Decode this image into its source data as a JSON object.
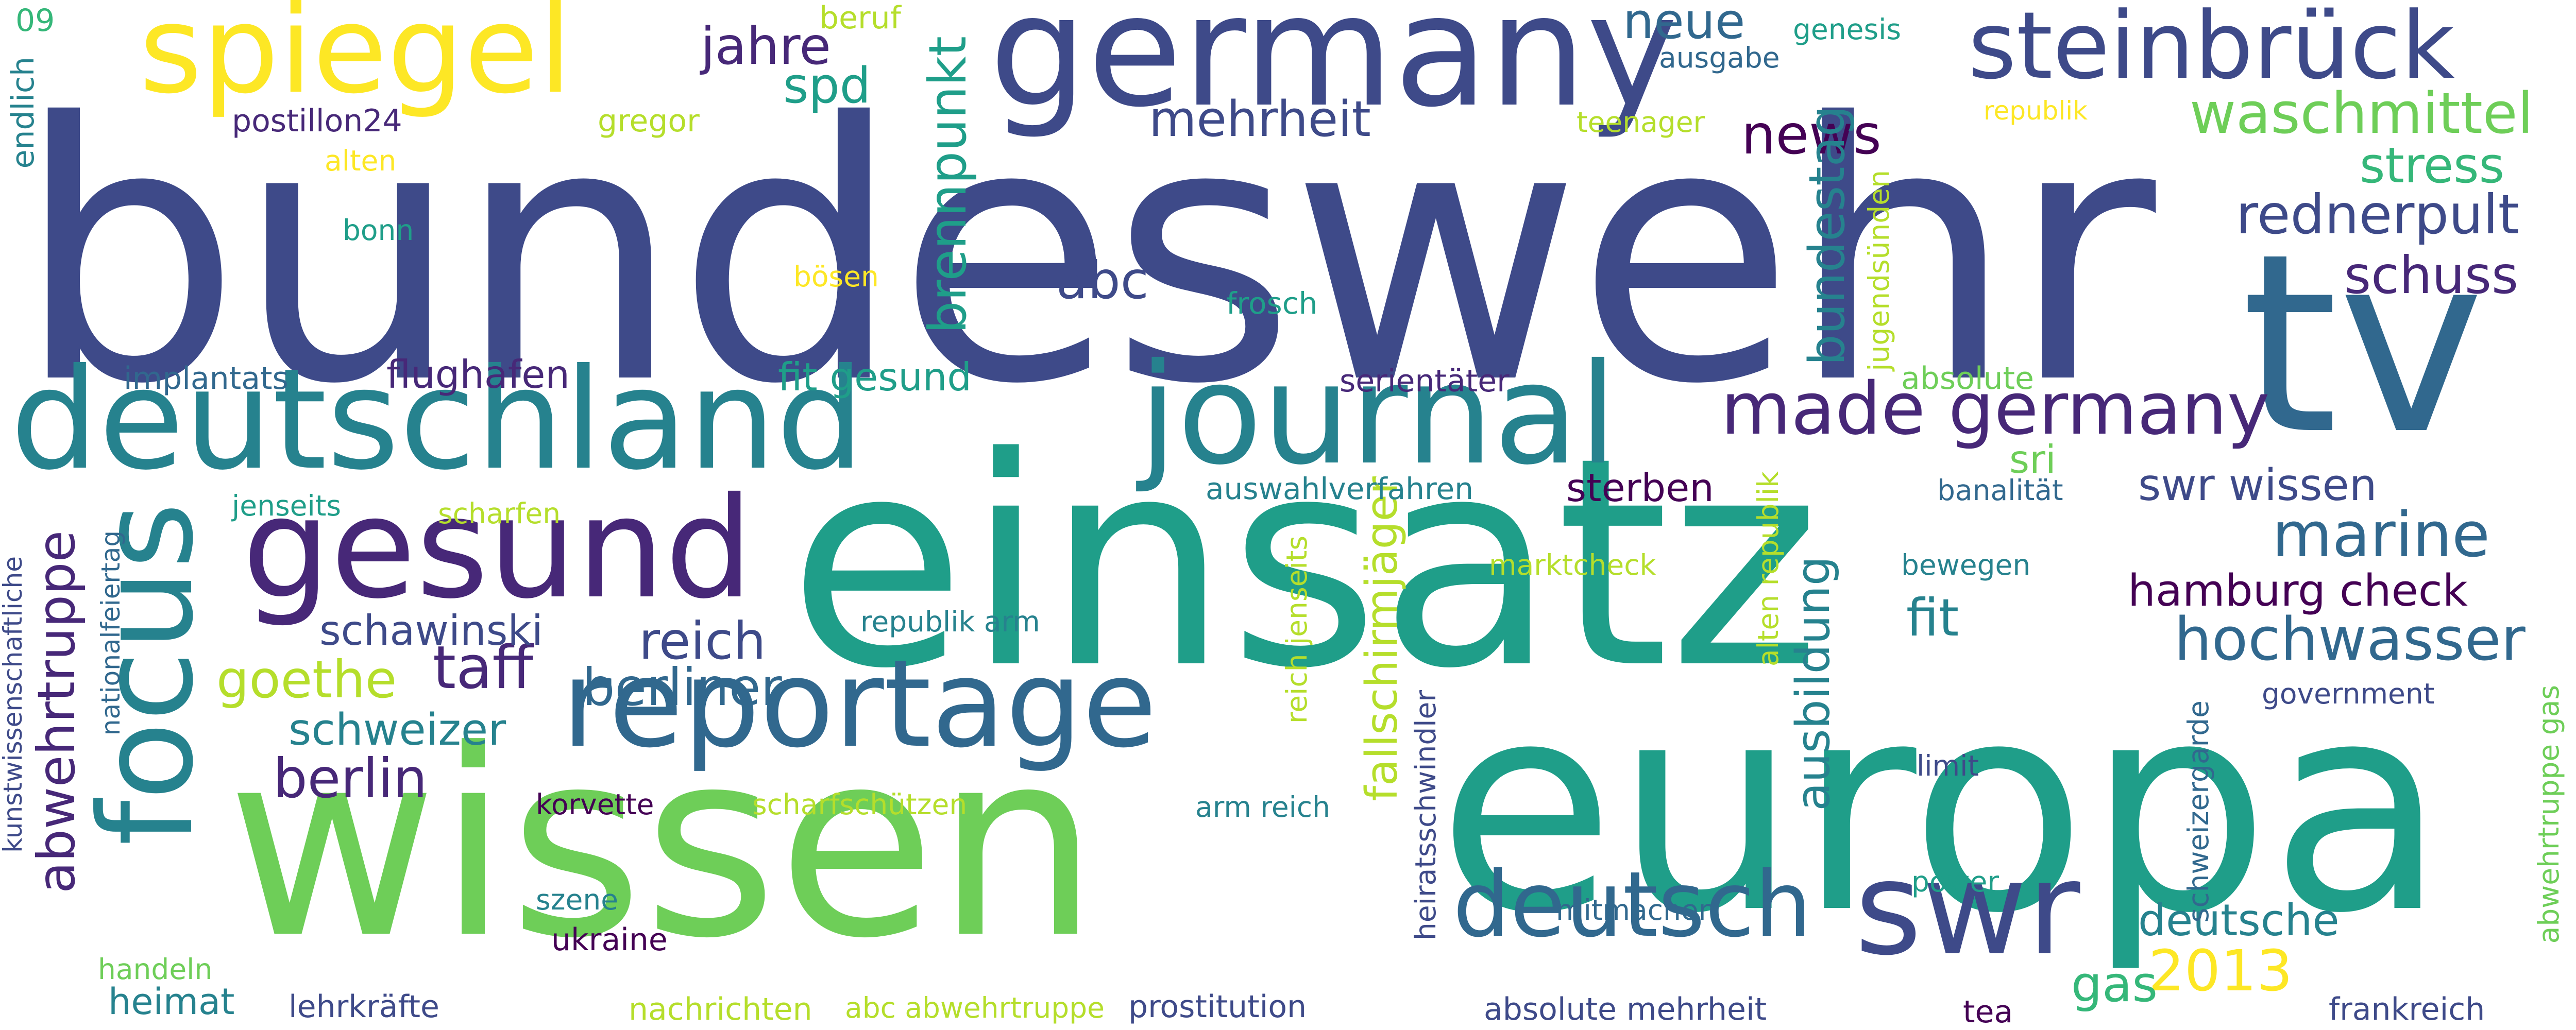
{
  "palette": {
    "navy": "#3e4a89",
    "indigo": "#472878",
    "purple": "#440154",
    "blue": "#31688e",
    "teal": "#26828e",
    "teal_green": "#1f9e89",
    "green": "#35b779",
    "light_green": "#6ece58",
    "lime": "#b5de2b",
    "yellow": "#fde725"
  },
  "words": [
    {
      "text": "bundeswehr",
      "color": "navy"
    },
    {
      "text": "einsatz",
      "color": "teal_green"
    },
    {
      "text": "europa",
      "color": "teal_green"
    },
    {
      "text": "wissen",
      "color": "light_green"
    },
    {
      "text": "tv",
      "color": "blue"
    },
    {
      "text": "germany",
      "color": "navy"
    },
    {
      "text": "deutschland",
      "color": "teal"
    },
    {
      "text": "journal",
      "color": "teal"
    },
    {
      "text": "spiegel",
      "color": "yellow"
    },
    {
      "text": "steinbrück",
      "color": "navy"
    },
    {
      "text": "gesund",
      "color": "indigo"
    },
    {
      "text": "reportage",
      "color": "blue"
    },
    {
      "text": "focus",
      "color": "teal"
    },
    {
      "text": "swr",
      "color": "navy"
    },
    {
      "text": "deutsch",
      "color": "blue"
    },
    {
      "text": "made germany",
      "color": "indigo"
    },
    {
      "text": "waschmittel",
      "color": "light_green"
    },
    {
      "text": "rednerpult",
      "color": "navy"
    },
    {
      "text": "hochwasser",
      "color": "blue"
    },
    {
      "text": "marine",
      "color": "blue"
    },
    {
      "text": "abwehrtruppe",
      "color": "indigo"
    },
    {
      "text": "news",
      "color": "purple"
    },
    {
      "text": "neue",
      "color": "blue"
    },
    {
      "text": "jahre",
      "color": "indigo"
    },
    {
      "text": "spd",
      "color": "teal_green"
    },
    {
      "text": "mehrheit",
      "color": "navy"
    },
    {
      "text": "brennpunkt",
      "color": "teal_green"
    },
    {
      "text": "bundestag",
      "color": "teal"
    },
    {
      "text": "stress",
      "color": "green"
    },
    {
      "text": "schuss",
      "color": "indigo"
    },
    {
      "text": "abc",
      "color": "navy"
    },
    {
      "text": "taff",
      "color": "indigo"
    },
    {
      "text": "reich",
      "color": "navy"
    },
    {
      "text": "berliner",
      "color": "blue"
    },
    {
      "text": "schweizer",
      "color": "teal"
    },
    {
      "text": "berlin",
      "color": "indigo"
    },
    {
      "text": "schawinski",
      "color": "navy"
    },
    {
      "text": "goethe",
      "color": "lime"
    },
    {
      "text": "fit",
      "color": "teal"
    },
    {
      "text": "ausbildung",
      "color": "teal"
    },
    {
      "text": "fallschirmjäger",
      "color": "lime"
    },
    {
      "text": "swr wissen",
      "color": "navy"
    },
    {
      "text": "hamburg check",
      "color": "purple"
    },
    {
      "text": "sri",
      "color": "light_green"
    },
    {
      "text": "sterben",
      "color": "purple"
    },
    {
      "text": "deutsche",
      "color": "teal"
    },
    {
      "text": "2013",
      "color": "yellow"
    },
    {
      "text": "gas",
      "color": "green"
    },
    {
      "text": "flughafen",
      "color": "indigo"
    },
    {
      "text": "fit gesund",
      "color": "teal_green"
    },
    {
      "text": "implantats",
      "color": "blue"
    },
    {
      "text": "serientäter",
      "color": "indigo"
    },
    {
      "text": "absolute",
      "color": "light_green"
    },
    {
      "text": "auswahlverfahren",
      "color": "teal"
    },
    {
      "text": "frosch",
      "color": "teal_green"
    },
    {
      "text": "09",
      "color": "green"
    },
    {
      "text": "endlich",
      "color": "teal"
    },
    {
      "text": "postillon24",
      "color": "indigo"
    },
    {
      "text": "gregor",
      "color": "lime"
    },
    {
      "text": "beruf",
      "color": "lime"
    },
    {
      "text": "alten",
      "color": "yellow"
    },
    {
      "text": "bonn",
      "color": "teal_green"
    },
    {
      "text": "bösen",
      "color": "yellow"
    },
    {
      "text": "ausgabe",
      "color": "blue"
    },
    {
      "text": "genesis",
      "color": "teal_green"
    },
    {
      "text": "teenager",
      "color": "lime"
    },
    {
      "text": "republik",
      "color": "yellow"
    },
    {
      "text": "jugendsünden",
      "color": "lime"
    },
    {
      "text": "jenseits",
      "color": "teal_green"
    },
    {
      "text": "scharfen",
      "color": "lime"
    },
    {
      "text": "banalität",
      "color": "blue"
    },
    {
      "text": "alten republik",
      "color": "lime"
    },
    {
      "text": "marktcheck",
      "color": "lime"
    },
    {
      "text": "bewegen",
      "color": "teal"
    },
    {
      "text": "republik arm",
      "color": "teal"
    },
    {
      "text": "reich jenseits",
      "color": "lime"
    },
    {
      "text": "government",
      "color": "navy"
    },
    {
      "text": "korvette",
      "color": "purple"
    },
    {
      "text": "scharfschützen",
      "color": "lime"
    },
    {
      "text": "arm reich",
      "color": "teal"
    },
    {
      "text": "limit",
      "color": "navy"
    },
    {
      "text": "nationalfeiertag",
      "color": "blue"
    },
    {
      "text": "kunstwissenschaftliche",
      "color": "navy"
    },
    {
      "text": "heiratsschwindler",
      "color": "navy"
    },
    {
      "text": "schweizergarde",
      "color": "blue"
    },
    {
      "text": "abwehrtruppe gas",
      "color": "light_green"
    },
    {
      "text": "szene",
      "color": "teal"
    },
    {
      "text": "mitmachen",
      "color": "blue"
    },
    {
      "text": "power",
      "color": "teal_green"
    },
    {
      "text": "ukraine",
      "color": "purple"
    },
    {
      "text": "handeln",
      "color": "light_green"
    },
    {
      "text": "heimat",
      "color": "teal"
    },
    {
      "text": "lehrkräfte",
      "color": "navy"
    },
    {
      "text": "nachrichten",
      "color": "lime"
    },
    {
      "text": "abc abwehrtruppe",
      "color": "lime"
    },
    {
      "text": "prostitution",
      "color": "navy"
    },
    {
      "text": "absolute mehrheit",
      "color": "navy"
    },
    {
      "text": "tea",
      "color": "purple"
    },
    {
      "text": "frankreich",
      "color": "navy"
    }
  ]
}
